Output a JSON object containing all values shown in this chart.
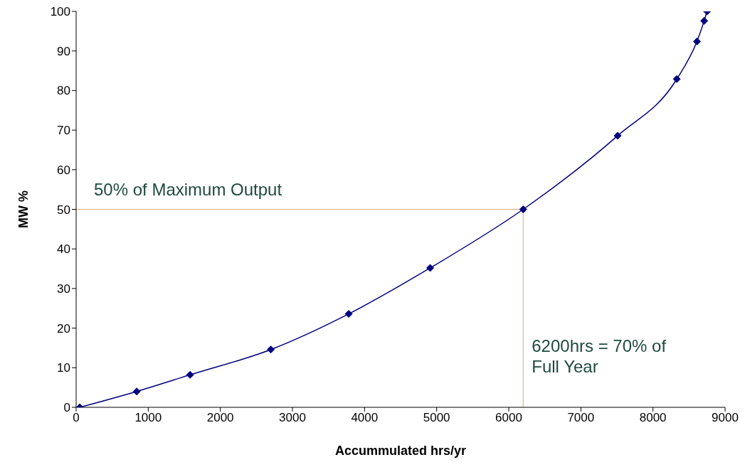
{
  "chart_data": {
    "type": "line",
    "xlabel": "Accummulated hrs/yr",
    "ylabel": "MW %",
    "x": [
      50,
      840,
      1580,
      2700,
      3780,
      4910,
      6200,
      7510,
      8330,
      8610,
      8710,
      8750
    ],
    "series": [
      {
        "color": "#000080",
        "values": [
          0,
          4,
          8.2,
          14.6,
          23.6,
          35.2,
          50,
          68.6,
          82.9,
          92.4,
          97.6,
          100
        ]
      }
    ],
    "xlim": [
      0,
      9000
    ],
    "xticks": [
      0,
      1000,
      2000,
      3000,
      4000,
      5000,
      6000,
      7000,
      8000,
      9000
    ],
    "ylim": [
      0,
      100
    ],
    "yticks": [
      0,
      10,
      20,
      30,
      40,
      50,
      60,
      70,
      80,
      90,
      100
    ],
    "grid": false,
    "legend": false,
    "marker": "diamond",
    "line_style": "solid",
    "ref_lines": [
      {
        "axis": "y",
        "value": 50,
        "label": "50% of Maximum Output",
        "color": "#d9aa7a"
      },
      {
        "axis": "x",
        "value": 6200,
        "label": "6200hrs = 70% of Full Year",
        "color": "#d9aa7a"
      }
    ]
  }
}
